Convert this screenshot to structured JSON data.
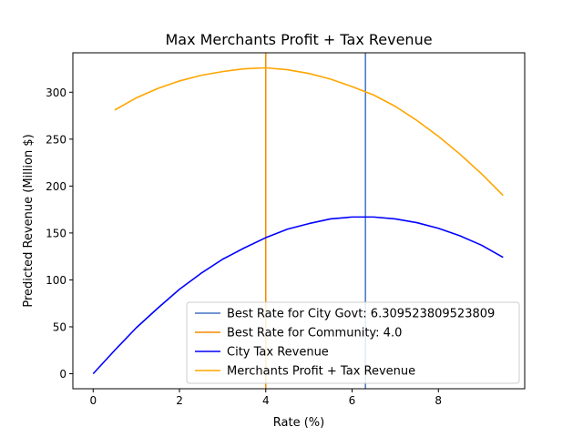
{
  "chart_data": {
    "type": "line",
    "title": "Max Merchants Profit + Tax Revenue",
    "xlabel": "Rate (%)",
    "ylabel": "Predicted Revenue (Million $)",
    "xlim": [
      -0.47,
      10.0
    ],
    "ylim": [
      -16,
      342
    ],
    "xticks": [
      0,
      2,
      4,
      6,
      8
    ],
    "yticks": [
      0,
      50,
      100,
      150,
      200,
      250,
      300
    ],
    "grid": false,
    "legend_placement": "lower-right",
    "vlines": [
      {
        "name": "Best Rate for City Govt: 6.309523809523809",
        "x": 6.309523809523809,
        "color": "#4472c4"
      },
      {
        "name": "Best Rate for Community: 4.0",
        "x": 4.0,
        "color": "#f28c00"
      }
    ],
    "series": [
      {
        "name": "City Tax Revenue",
        "color": "#0000ff",
        "x": [
          0,
          0.5,
          1,
          1.5,
          2,
          2.5,
          3,
          3.5,
          4,
          4.5,
          5,
          5.5,
          6,
          6.5,
          7,
          7.5,
          8,
          8.5,
          9,
          9.5
        ],
        "values": [
          0,
          25,
          49,
          70,
          90,
          107,
          122,
          134,
          145,
          154,
          160,
          165,
          167,
          167,
          165,
          161,
          155,
          147,
          137,
          124
        ]
      },
      {
        "name": "Merchants Profit + Tax Revenue",
        "color": "#ffa500",
        "x": [
          0.5,
          1,
          1.5,
          2,
          2.5,
          3,
          3.5,
          4,
          4.5,
          5,
          5.5,
          6,
          6.5,
          7,
          7.5,
          8,
          8.5,
          9,
          9.5
        ],
        "values": [
          281,
          294,
          304,
          312,
          318,
          322,
          325,
          326,
          324,
          320,
          314,
          306,
          297,
          285,
          270,
          253,
          234,
          213,
          190
        ]
      }
    ],
    "legend": [
      {
        "label": "Best Rate for City Govt: 6.309523809523809",
        "color": "#4472c4"
      },
      {
        "label": "Best Rate for Community: 4.0",
        "color": "#f28c00"
      },
      {
        "label": "City Tax Revenue",
        "color": "#0000ff"
      },
      {
        "label": "Merchants Profit + Tax Revenue",
        "color": "#ffa500"
      }
    ]
  }
}
